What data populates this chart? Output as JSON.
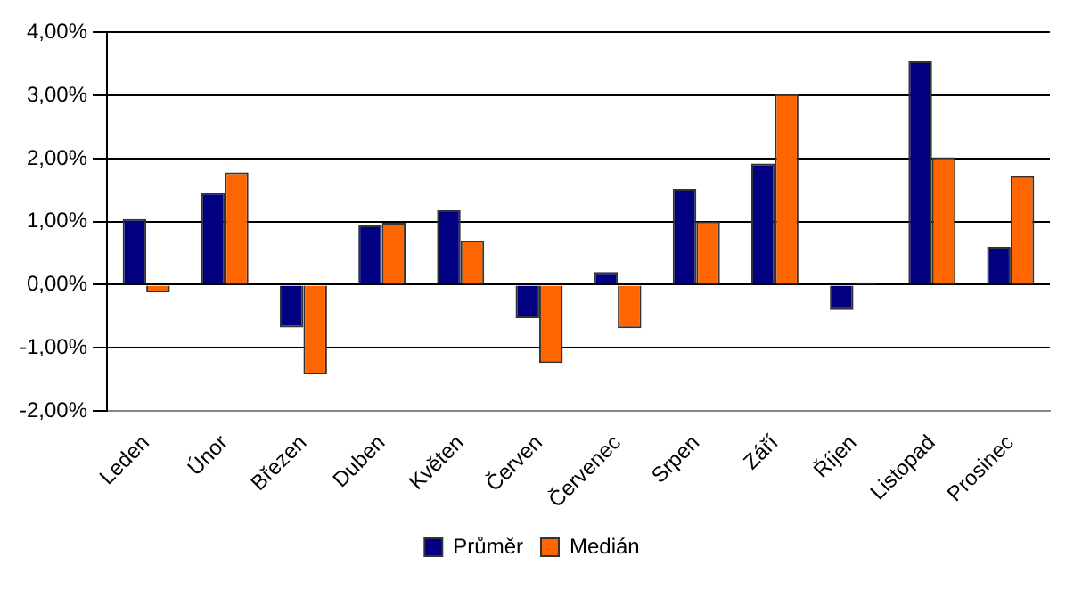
{
  "chart_data": {
    "type": "bar",
    "categories": [
      "Leden",
      "Únor",
      "Březen",
      "Duben",
      "Květen",
      "Červen",
      "Červenec",
      "Srpen",
      "Září",
      "Říjen",
      "Listopad",
      "Prosinec"
    ],
    "series": [
      {
        "name": "Průměr",
        "color": "#000080",
        "values": [
          1.04,
          1.46,
          -0.68,
          0.94,
          1.18,
          -0.53,
          0.2,
          1.52,
          1.92,
          -0.4,
          3.54,
          0.6
        ]
      },
      {
        "name": "Medián",
        "color": "#ff6600",
        "values": [
          -0.12,
          1.78,
          -1.42,
          0.98,
          0.7,
          -1.24,
          -0.69,
          1.0,
          3.02,
          0.04,
          2.02,
          1.72
        ]
      }
    ],
    "ylim": [
      -2,
      4
    ],
    "yticks": [
      {
        "value": -2,
        "label": "-2,00%"
      },
      {
        "value": -1,
        "label": "-1,00%"
      },
      {
        "value": 0,
        "label": "0,00%"
      },
      {
        "value": 1,
        "label": "1,00%"
      },
      {
        "value": 2,
        "label": "2,00%"
      },
      {
        "value": 3,
        "label": "3,00%"
      },
      {
        "value": 4,
        "label": "4,00%"
      }
    ],
    "grid": "y",
    "legend": "bottom"
  }
}
